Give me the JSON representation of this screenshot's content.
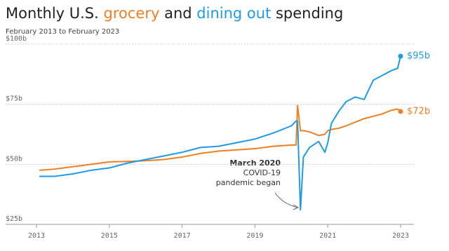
{
  "chart_data": {
    "type": "line",
    "title_parts": [
      "Monthly U.S.",
      "and",
      "spending"
    ],
    "subtitle": "February 2013 to February 2023",
    "annotation": [
      "March 2020",
      "COVID-19",
      "pandemic began"
    ],
    "x": [
      2013.08,
      2013.5,
      2014,
      2014.5,
      2015,
      2015.5,
      2016,
      2016.5,
      2017,
      2017.5,
      2018,
      2018.5,
      2019,
      2019.5,
      2020,
      2020.13,
      2020.17,
      2020.25,
      2020.33,
      2020.5,
      2020.75,
      2020.92,
      2021,
      2021.1,
      2021.3,
      2021.5,
      2021.75,
      2022,
      2022.25,
      2022.5,
      2022.75,
      2022.92,
      2023
    ],
    "series": [
      {
        "name": "grocery",
        "color": "#f07f22",
        "end_label": "$72b",
        "values": [
          47.5,
          48,
          49,
          50,
          51,
          51.2,
          51.5,
          52,
          53,
          54.5,
          55.5,
          56,
          56.5,
          57.5,
          58,
          58,
          74.5,
          64,
          64,
          63.5,
          62,
          62.5,
          64,
          64.5,
          65,
          66,
          67.5,
          69,
          70,
          71,
          72.5,
          73,
          72
        ]
      },
      {
        "name": "dining out",
        "color": "#1e9be6",
        "end_label": "$95b",
        "values": [
          45,
          45,
          46,
          47.5,
          48.5,
          50.5,
          52,
          53.5,
          55,
          57,
          57.5,
          59,
          60.5,
          63,
          66,
          68,
          68,
          31,
          53,
          57,
          59.5,
          55,
          59,
          67,
          72,
          76,
          78,
          77,
          85,
          87,
          89,
          90,
          95
        ]
      }
    ],
    "xlim": [
      2013,
      2023
    ],
    "xticks": [
      2013,
      2015,
      2017,
      2019,
      2021,
      2023
    ],
    "ylim": [
      25,
      100
    ],
    "yticks": [
      {
        "value": 25,
        "label": "$25b"
      },
      {
        "value": 50,
        "label": "$50b"
      },
      {
        "value": 75,
        "label": "$75b"
      },
      {
        "value": 100,
        "label": "$100b"
      }
    ],
    "grid": true
  }
}
